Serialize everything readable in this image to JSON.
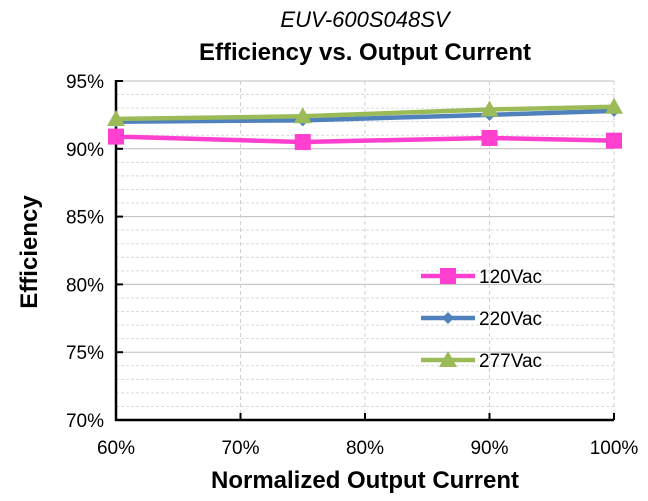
{
  "header": {
    "model": "EUV-600S048SV"
  },
  "chart_data": {
    "type": "line",
    "title": "Efficiency vs. Output Current",
    "subtitle": "EUV-600S048SV",
    "xlabel": "Normalized Output Current",
    "ylabel": "Efficiency",
    "x": [
      60,
      75,
      90,
      100
    ],
    "xlim": [
      60,
      100
    ],
    "ylim": [
      70,
      95
    ],
    "x_ticks": [
      60,
      70,
      80,
      90,
      100
    ],
    "x_tick_labels": [
      "60%",
      "70%",
      "80%",
      "90%",
      "100%"
    ],
    "y_ticks": [
      70,
      75,
      80,
      85,
      90,
      95
    ],
    "y_tick_labels": [
      "70%",
      "75%",
      "80%",
      "85%",
      "90%",
      "95%"
    ],
    "grid": true,
    "legend_position": "bottom-right",
    "series": [
      {
        "name": "120Vac",
        "values": [
          90.9,
          90.5,
          90.8,
          90.6
        ],
        "color": "#ff3fd0",
        "marker": "square"
      },
      {
        "name": "220Vac",
        "values": [
          92.0,
          92.1,
          92.5,
          92.8
        ],
        "color": "#4f81bd",
        "marker": "diamond"
      },
      {
        "name": "277Vac",
        "values": [
          92.2,
          92.4,
          92.9,
          93.1
        ],
        "color": "#9bbb59",
        "marker": "triangle"
      }
    ]
  }
}
